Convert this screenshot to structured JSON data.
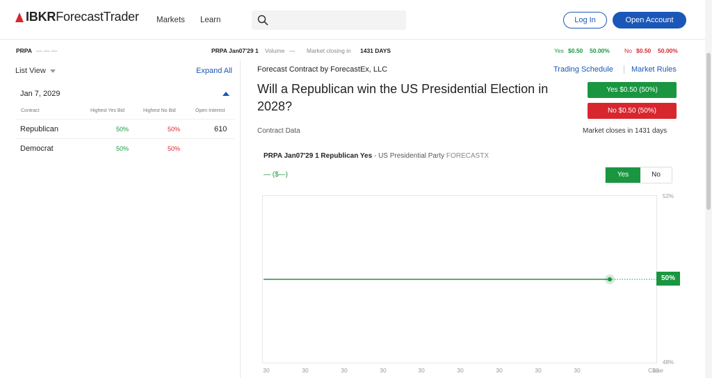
{
  "header": {
    "logo_bold": "IBKR",
    "logo_rest": "ForecastTrader",
    "nav": [
      "Markets",
      "Learn"
    ],
    "search_placeholder": "",
    "login_label": "Log In",
    "open_account_label": "Open Account"
  },
  "ticker": {
    "symbol": "PRPA",
    "symbol_dashes": "— — —",
    "contract": "PRPA Jan07'29 1",
    "volume_label": "Volume",
    "volume_value": "—",
    "closing_label": "Market closing in",
    "closing_value": "1431 DAYS",
    "yes_label": "Yes",
    "yes_price": "$0.50",
    "yes_pct": "50.00%",
    "no_label": "No",
    "no_price": "$0.50",
    "no_pct": "50.00%"
  },
  "left_panel": {
    "list_view_label": "List View",
    "expand_all_label": "Expand All",
    "card": {
      "date": "Jan 7, 2029",
      "headers": [
        "Contract",
        "Highest Yes Bid",
        "Highest No Bid",
        "Open Interest"
      ],
      "rows": [
        {
          "contract": "Republican",
          "yes_bid": "50%",
          "no_bid": "50%",
          "open_interest": "610"
        },
        {
          "contract": "Democrat",
          "yes_bid": "50%",
          "no_bid": "50%",
          "open_interest": ""
        }
      ]
    }
  },
  "main": {
    "provider": "Forecast Contract by ForecastEx, LLC",
    "trading_schedule": "Trading Schedule",
    "market_rules": "Market Rules",
    "question": "Will a Republican win the US Presidential Election in 2028?",
    "yes_button": "Yes $0.50 (50%)",
    "no_button": "No $0.50 (50%)",
    "contract_data_label": "Contract Data",
    "closes_text": "Market closes in 1431 days",
    "chart_header": {
      "contract": "PRPA Jan07'29 1 Republican Yes",
      "dash": " - ",
      "category": "US Presidential Party",
      "source": "FORECASTX"
    },
    "chart_price": "— ($—)",
    "toggle_yes": "Yes",
    "toggle_no": "No"
  },
  "chart_data": {
    "type": "line",
    "x": [
      "30",
      "30",
      "30",
      "30",
      "30",
      "30",
      "30",
      "30",
      "30",
      "30",
      "Close"
    ],
    "series": [
      {
        "values": [
          50,
          50,
          50,
          50,
          50,
          50,
          50,
          50,
          50,
          50,
          50
        ]
      }
    ],
    "y_tick_labels": [
      "52%",
      "48%"
    ],
    "current_value_label": "50%",
    "ylim": [
      48,
      52
    ],
    "grid": false,
    "line_color": "#1a9641"
  },
  "colors": {
    "accent": "#1a57b8",
    "yes": "#1a9641",
    "no": "#d8262e"
  }
}
